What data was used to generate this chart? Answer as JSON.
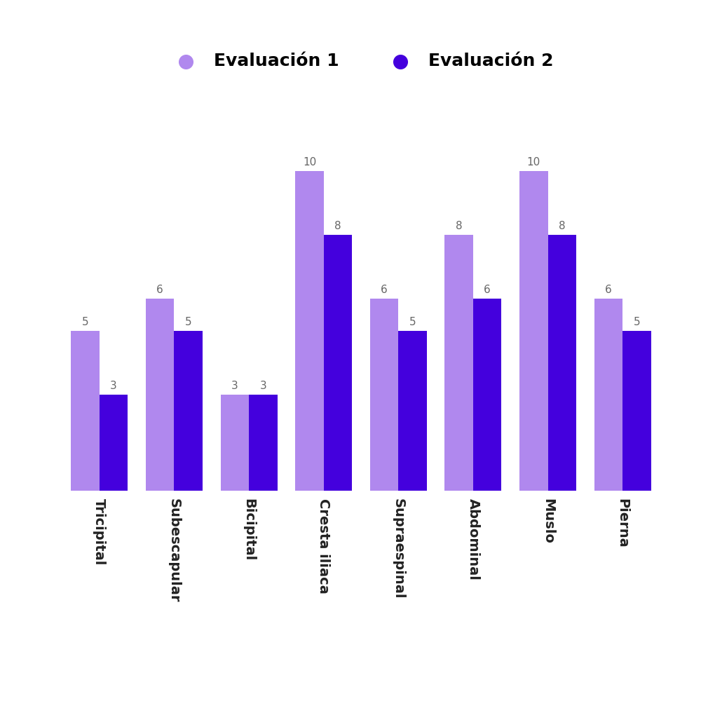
{
  "categories": [
    "Tricipital",
    "Subescapular",
    "Bicipital",
    "Cresta iliaca",
    "Supraespinal",
    "Abdominal",
    "Muslo",
    "Pierna"
  ],
  "eval1": [
    5,
    6,
    3,
    10,
    6,
    8,
    10,
    6
  ],
  "eval2": [
    3,
    5,
    3,
    8,
    5,
    6,
    8,
    5
  ],
  "color_eval1": "#b088ee",
  "color_eval2": "#4400dd",
  "legend_label1": "Evaluación 1",
  "legend_label2": "Evaluación 2",
  "bar_width": 0.38,
  "ylim": [
    0,
    12.5
  ],
  "background_color": "#ffffff",
  "label_fontsize": 14,
  "value_fontsize": 11,
  "legend_fontsize": 18,
  "tick_label_color": "#222222",
  "value_label_color": "#666666"
}
